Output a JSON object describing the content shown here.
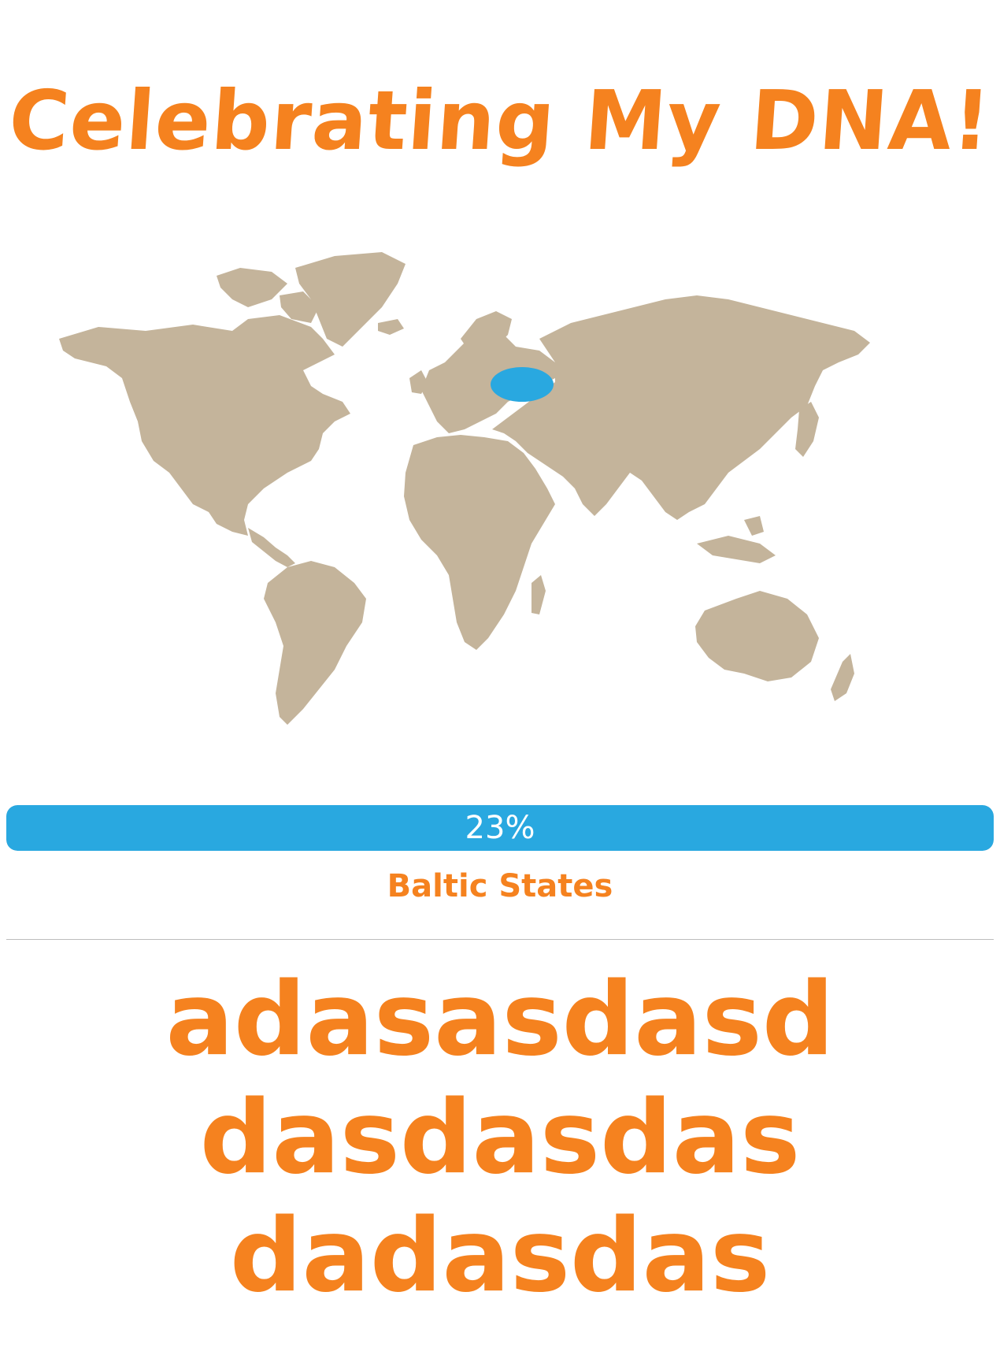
{
  "title": "Celebrating My DNA!",
  "map": {
    "land_color": "#C4B49B",
    "highlight_color": "#29A8E0",
    "highlighted_region": "Baltic States"
  },
  "ancestry": {
    "percent_label": "23%",
    "percent_value": 23,
    "region_label": "Baltic States",
    "bar_color": "#29A8E0"
  },
  "message": {
    "lines": [
      "adasasdasd",
      "dasdasdas",
      "dadasdas"
    ]
  },
  "colors": {
    "accent": "#F5821F"
  }
}
